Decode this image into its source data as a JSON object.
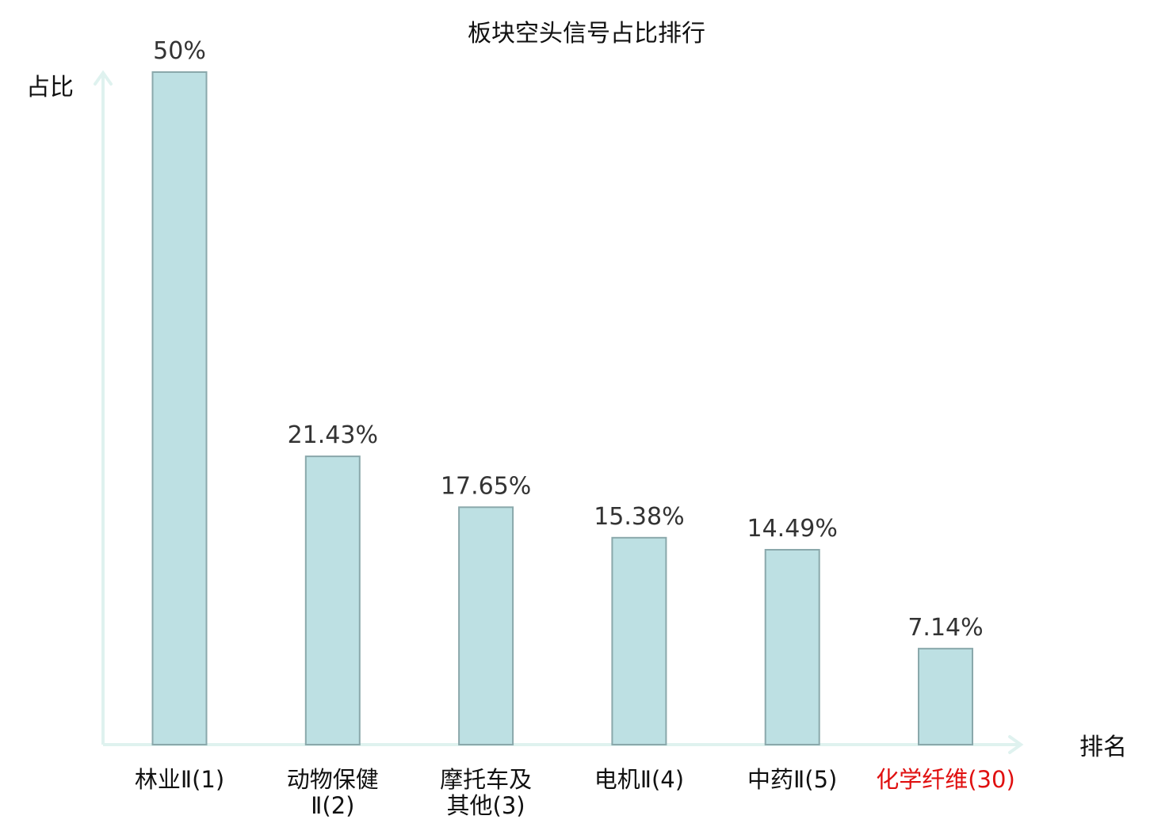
{
  "chart_data": {
    "type": "bar",
    "title": "板块空头信号占比排行",
    "ylabel": "占比",
    "xlabel": "排名",
    "categories": [
      [
        "林业Ⅱ(1)"
      ],
      [
        "动物保健",
        "Ⅱ(2)"
      ],
      [
        "摩托车及",
        "其他(3)"
      ],
      [
        "电机Ⅱ(4)"
      ],
      [
        "中药Ⅱ(5)"
      ],
      [
        "化学纤维(30)"
      ]
    ],
    "values": [
      50,
      21.43,
      17.65,
      15.38,
      14.49,
      7.14
    ],
    "value_labels": [
      "50%",
      "21.43%",
      "17.65%",
      "15.38%",
      "14.49%",
      "7.14%"
    ],
    "highlight_index": 5,
    "ylim": [
      0,
      50
    ],
    "grid": false,
    "legend": "none",
    "colors": {
      "bar_fill": "#bde0e3",
      "bar_stroke": "#8aa8ab",
      "axis": "#dff2ef",
      "label_text": "#111111",
      "value_text": "#333333",
      "highlight_text": "#e01010"
    }
  }
}
